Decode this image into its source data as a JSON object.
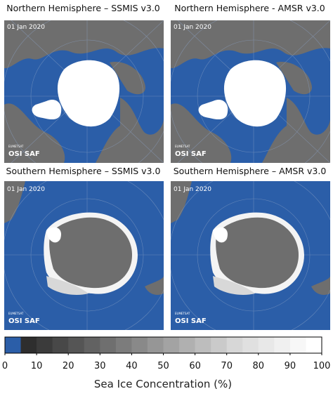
{
  "panels": [
    {
      "title": "Northern Hemisphere – SSMIS v3.0",
      "date": "01 Jan 2020",
      "agency": "EUMETSAT",
      "logo": "OSI SAF"
    },
    {
      "title": "Northern Hemisphere - AMSR v3.0",
      "date": "01 Jan 2020",
      "agency": "EUMETSAT",
      "logo": "OSI SAF"
    },
    {
      "title": "Southern Hemisphere – SSMIS v3.0",
      "date": "01 Jan 2020",
      "agency": "EUMETSAT",
      "logo": "OSI SAF"
    },
    {
      "title": "Southern Hemisphere – AMSR v3.0",
      "date": "01 Jan 2020",
      "agency": "EUMETSAT",
      "logo": "OSI SAF"
    }
  ],
  "colorbar": {
    "label": "Sea Ice Concentration (%)",
    "range": [
      0,
      100
    ],
    "ticks": [
      0,
      10,
      20,
      30,
      40,
      50,
      60,
      70,
      80,
      90,
      100
    ],
    "colors": [
      "#2b5ea8",
      "#2e2e2e",
      "#3b3b3b",
      "#484848",
      "#555555",
      "#626262",
      "#6f6f6f",
      "#7c7c7c",
      "#898989",
      "#969696",
      "#a3a3a3",
      "#b0b0b0",
      "#bdbdbd",
      "#cacaca",
      "#d7d7d7",
      "#e0e0e0",
      "#e8e8e8",
      "#f0f0f0",
      "#f7f7f7",
      "#ffffff"
    ]
  }
}
